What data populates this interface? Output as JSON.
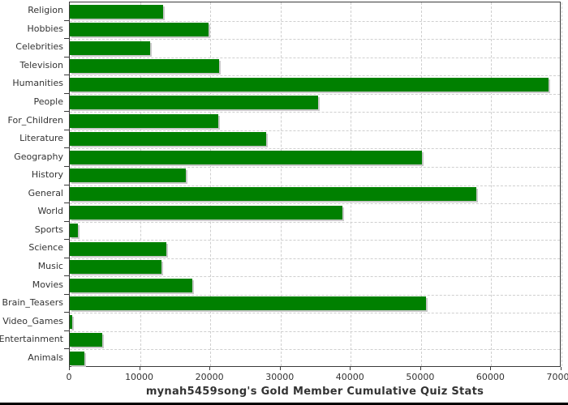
{
  "chart_data": {
    "type": "bar",
    "orientation": "horizontal",
    "title": "mynah5459song's Gold Member Cumulative Quiz Stats",
    "categories": [
      "Religion",
      "Hobbies",
      "Celebrities",
      "Television",
      "Humanities",
      "People",
      "For_Children",
      "Literature",
      "Geography",
      "History",
      "General",
      "World",
      "Sports",
      "Science",
      "Music",
      "Movies",
      "Brain_Teasers",
      "Video_Games",
      "Entertainment",
      "Animals"
    ],
    "values": [
      13300,
      19700,
      11400,
      21300,
      68100,
      35300,
      21100,
      27900,
      50100,
      16500,
      57900,
      38800,
      1100,
      13700,
      13000,
      17400,
      50700,
      400,
      4600,
      2100
    ],
    "xlabel": "",
    "ylabel": "",
    "xlim": [
      0,
      70000
    ],
    "x_ticks": [
      0,
      10000,
      20000,
      30000,
      40000,
      50000,
      60000,
      70000
    ],
    "grid": "dashed, vertical at value ticks and horizontal at category boundaries",
    "legend": "none",
    "colors": {
      "bar": "#008000",
      "bar_shadow": "#c9c9c9",
      "gridline": "#cfcfcf",
      "plot_border": "#3a3a3a",
      "text": "#333333",
      "bottom_rule": "#000000",
      "background": "#ffffff"
    }
  }
}
